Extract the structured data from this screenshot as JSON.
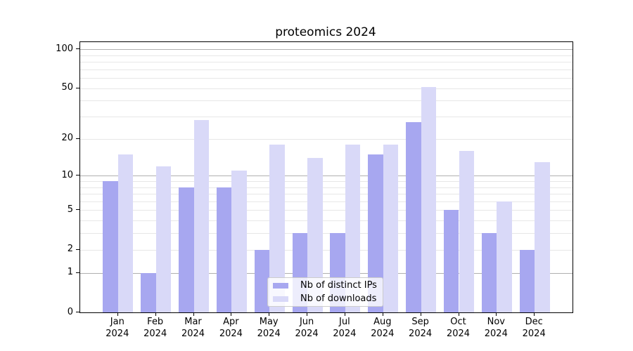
{
  "chart_data": {
    "type": "bar",
    "title": "proteomics 2024",
    "categories": [
      "Jan 2024",
      "Feb 2024",
      "Mar 2024",
      "Apr 2024",
      "May 2024",
      "Jun 2024",
      "Jul 2024",
      "Aug 2024",
      "Sep 2024",
      "Oct 2024",
      "Nov 2024",
      "Dec 2024"
    ],
    "series": [
      {
        "name": "Nb of distinct IPs",
        "color": "#a7a7f0",
        "values": [
          9,
          1,
          8,
          8,
          2,
          3,
          3,
          15,
          27,
          5,
          3,
          2
        ]
      },
      {
        "name": "Nb of downloads",
        "color": "#d9d9f8",
        "values": [
          15,
          12,
          28,
          11,
          18,
          14,
          18,
          18,
          51,
          16,
          6,
          13
        ]
      }
    ],
    "y_axis": {
      "scale": "log1p",
      "tick_values": [
        0,
        1,
        2,
        5,
        10,
        20,
        50,
        100
      ],
      "tick_labels": [
        "0",
        "1",
        "2",
        "5",
        "10",
        "20",
        "50",
        "100"
      ],
      "major_gridlines": [
        1,
        10,
        100
      ],
      "minor_gridlines": [
        2,
        3,
        4,
        5,
        6,
        7,
        8,
        9,
        20,
        30,
        40,
        50,
        60,
        70,
        80,
        90
      ],
      "range": [
        0,
        113
      ]
    },
    "legend": {
      "position": "lower center"
    },
    "grid": true,
    "colors": {
      "major_grid": "#b0b0b0",
      "minor_grid": "#e7e7e7",
      "axis": "#000000",
      "legend_border": "#cccccc"
    }
  }
}
